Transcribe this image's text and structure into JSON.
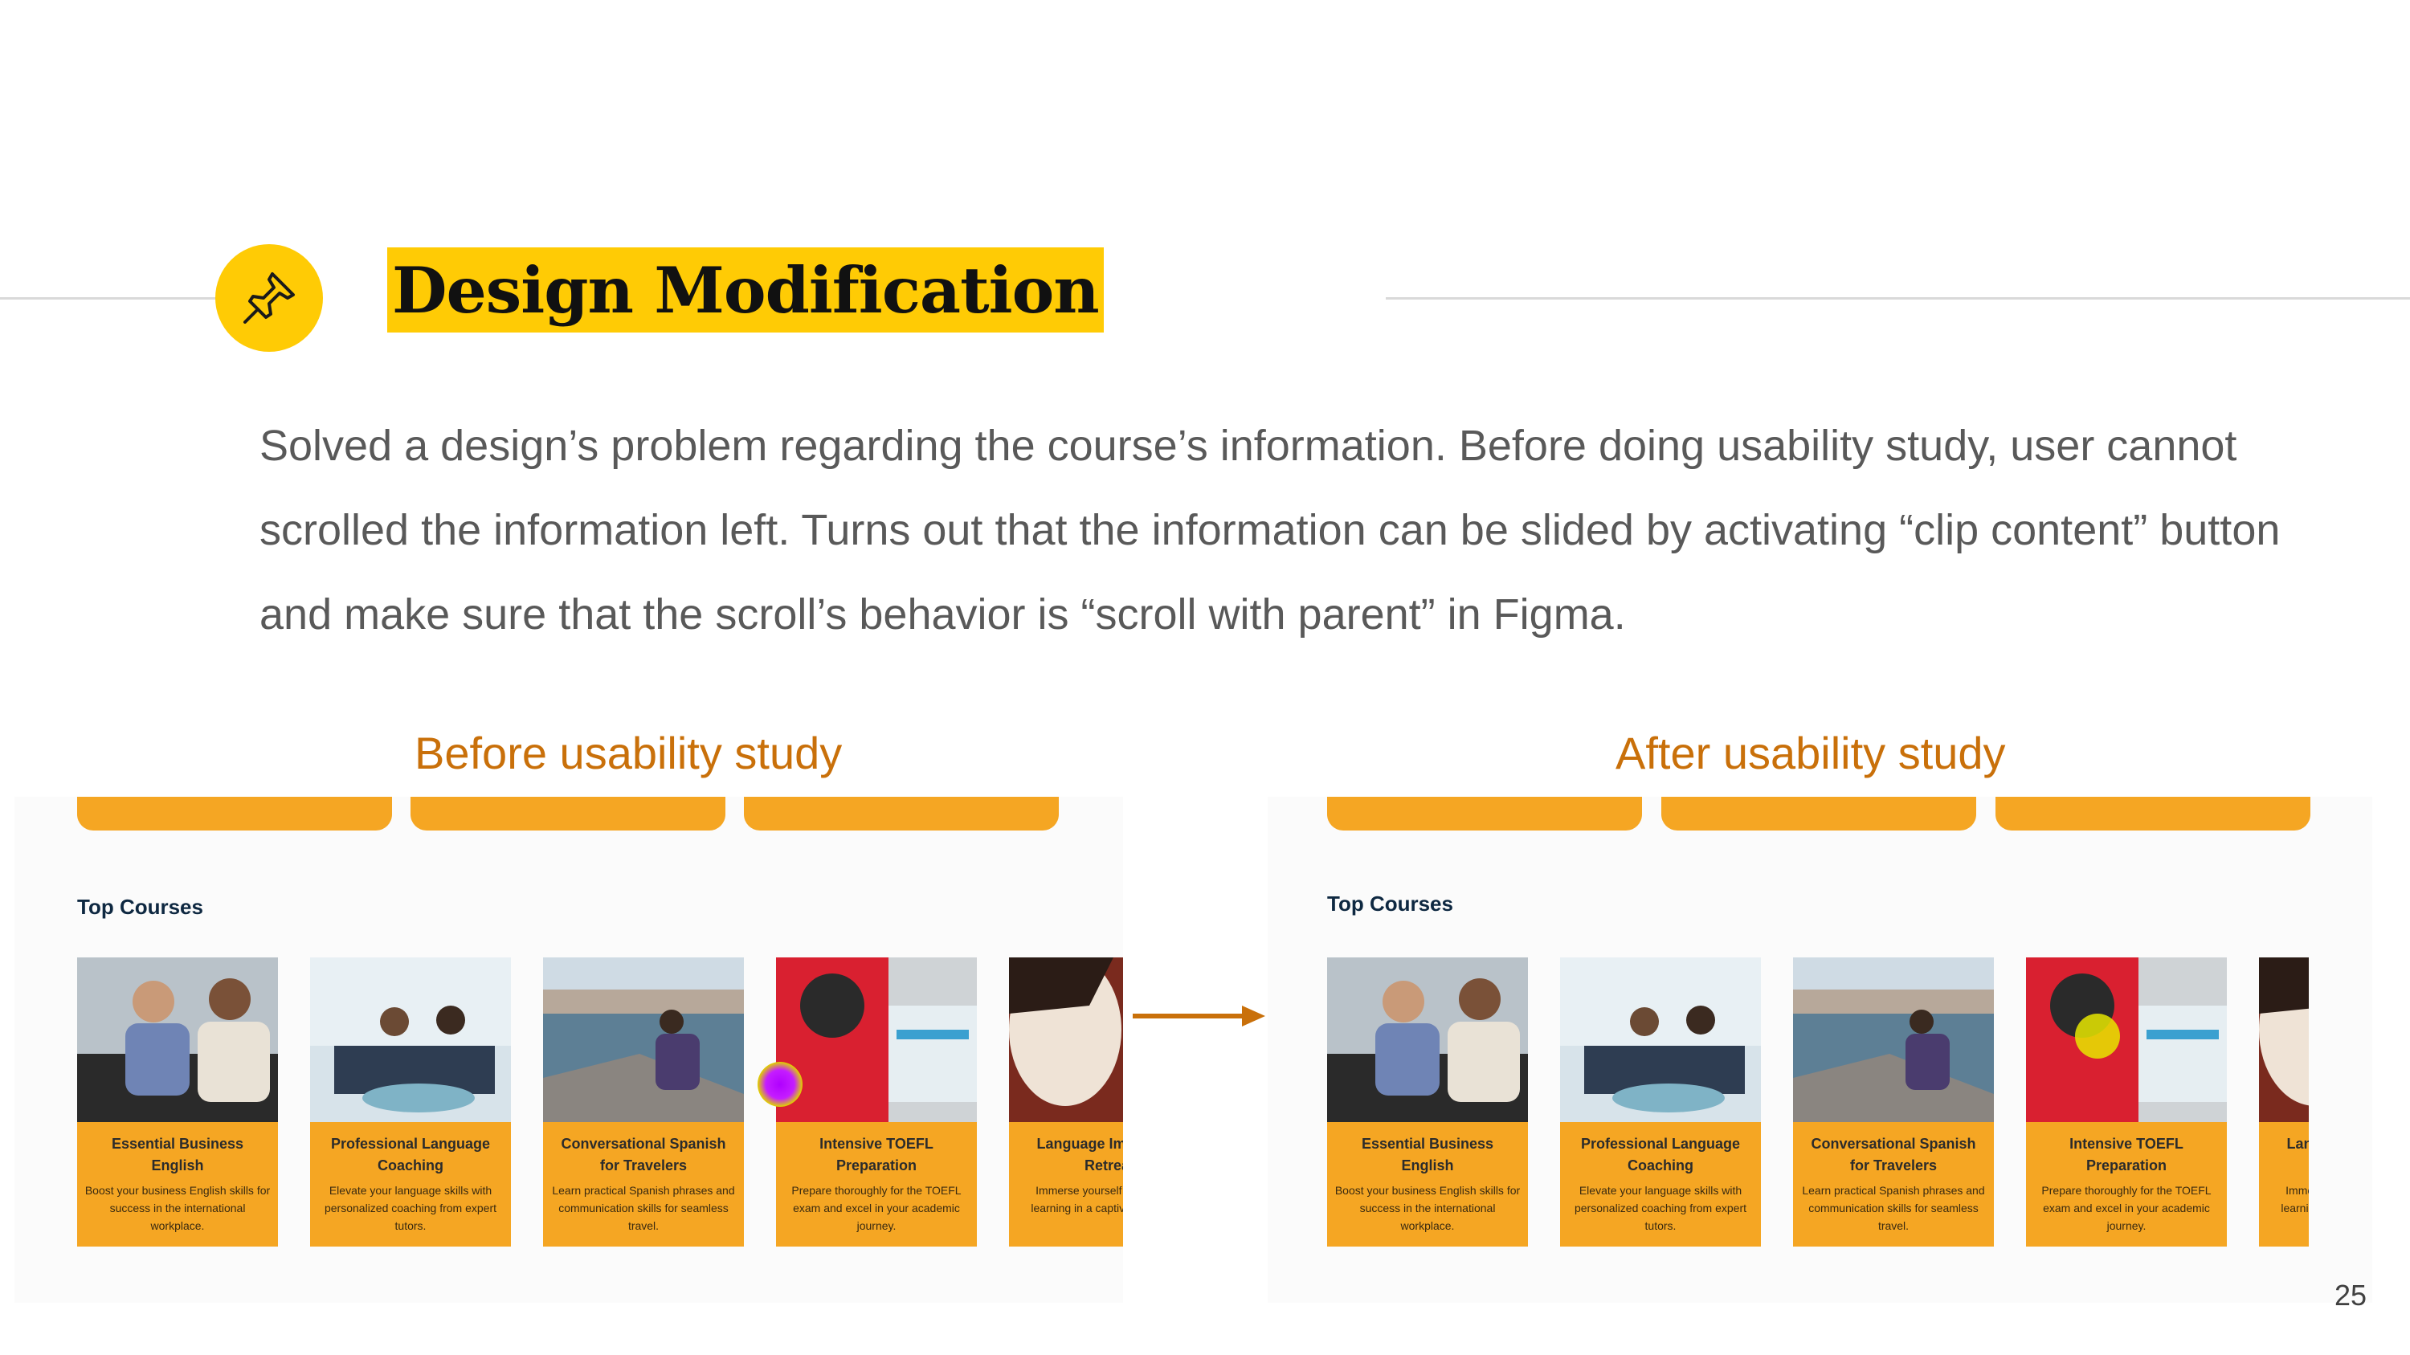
{
  "slide": {
    "title": "Design Modification",
    "body": "Solved a design’s problem regarding the course’s information. Before doing usability study, user cannot scrolled the information left. Turns out that the information can be slided by activating “clip content” button and make sure that the scroll’s behavior is “scroll with parent” in Figma.",
    "page_number": "25",
    "accent_color": "#ffcb05",
    "caption_color": "#c9700a",
    "card_color": "#f5a623"
  },
  "before": {
    "caption": "Before usability study",
    "heading": "Top Courses",
    "cursor_on_card": 4
  },
  "after": {
    "caption": "After usability study",
    "heading": "Top Courses",
    "cursor_on_card": 4
  },
  "courses": [
    {
      "title": "Essential Business English",
      "desc": "Boost your business English skills for success in the international workplace."
    },
    {
      "title": "Professional Language Coaching",
      "desc": "Elevate your language skills with personalized coaching from expert tutors."
    },
    {
      "title": "Conversational Spanish for Travelers",
      "desc": "Learn practical Spanish phrases and communication skills for seamless travel."
    },
    {
      "title": "Intensive TOEFL Preparation",
      "desc": "Prepare thoroughly for the TOEFL exam and excel in your academic journey."
    },
    {
      "title": "Language Immersion Retreat",
      "desc": "Immerse yourself in language learning in a captivating retreat."
    }
  ]
}
